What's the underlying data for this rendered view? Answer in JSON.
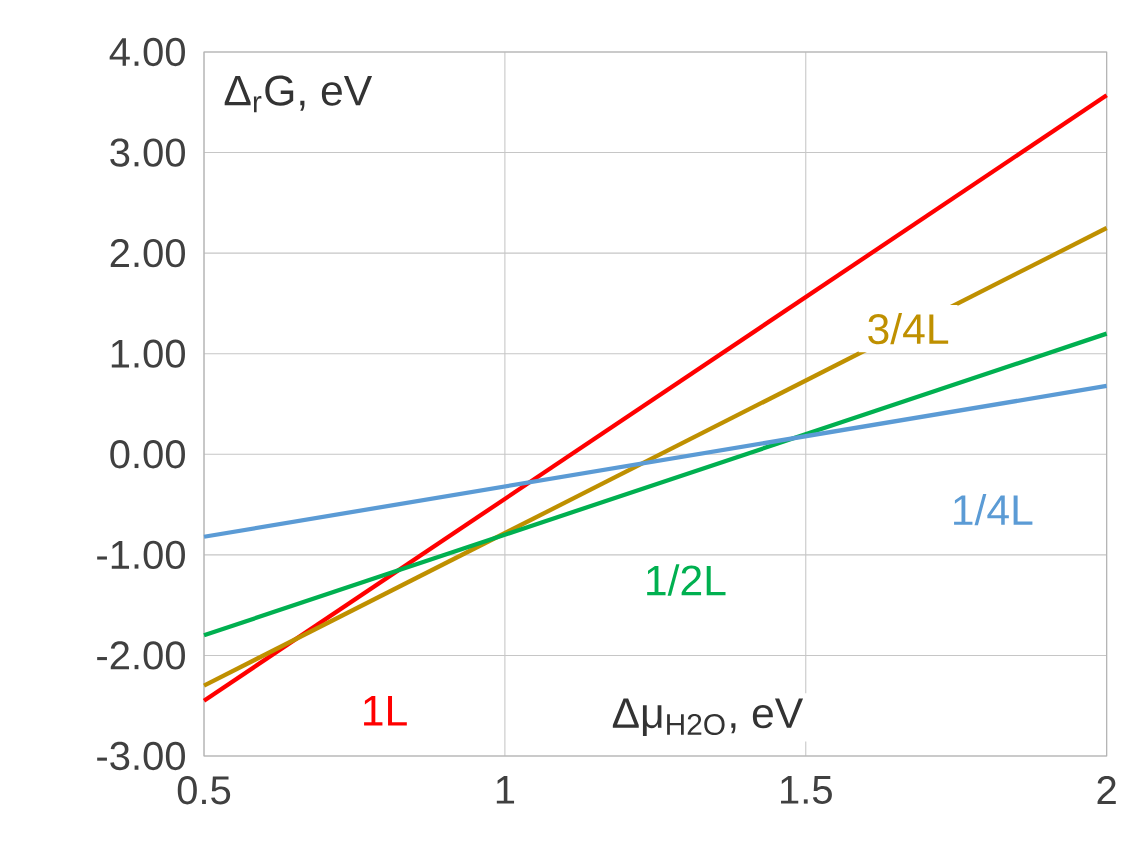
{
  "chart_data": {
    "type": "line",
    "xlabel": "Δμ$_{H2O}$, eV",
    "ylabel": "Δ$_{r}$G, eV",
    "x": [
      0.5,
      2
    ],
    "series": [
      {
        "name": "1L",
        "color": "#ff0000",
        "values": [
          -2.45,
          3.57
        ]
      },
      {
        "name": "3/4L",
        "color": "#bf9000",
        "values": [
          -2.3,
          2.25
        ]
      },
      {
        "name": "1/2L",
        "color": "#00b050",
        "values": [
          -1.8,
          1.2
        ]
      },
      {
        "name": "1/4L",
        "color": "#5b9bd5",
        "values": [
          -0.82,
          0.68
        ]
      }
    ],
    "xlim": [
      0.5,
      2
    ],
    "ylim": [
      -3,
      4
    ],
    "xticks": [
      0.5,
      1,
      1.5,
      2
    ],
    "yticks": [
      {
        "value": -3,
        "label": "-3.00"
      },
      {
        "value": -2,
        "label": "-2.00"
      },
      {
        "value": -1,
        "label": "-1.00"
      },
      {
        "value": 0,
        "label": "0.00"
      },
      {
        "value": 1,
        "label": "1.00"
      },
      {
        "value": 2,
        "label": "2.00"
      },
      {
        "value": 3,
        "label": "3.00"
      },
      {
        "value": 4,
        "label": "4.00"
      }
    ],
    "grid": true,
    "legend": false,
    "marker": "none",
    "line_style": "solid"
  }
}
